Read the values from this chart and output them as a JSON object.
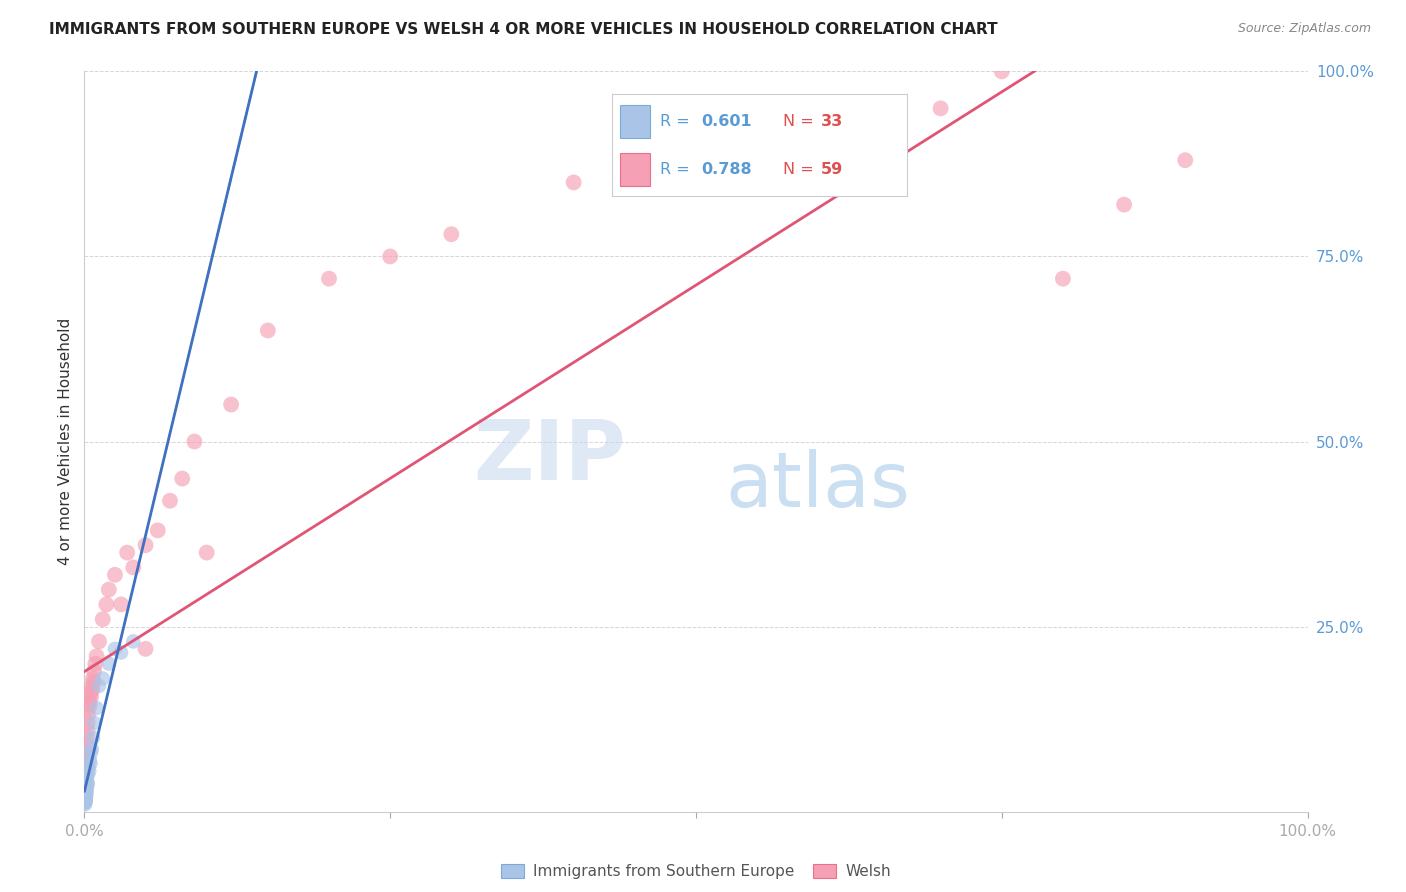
{
  "title": "IMMIGRANTS FROM SOUTHERN EUROPE VS WELSH 4 OR MORE VEHICLES IN HOUSEHOLD CORRELATION CHART",
  "source": "Source: ZipAtlas.com",
  "ylabel": "4 or more Vehicles in Household",
  "blue_label": "Immigrants from Southern Europe",
  "pink_label": "Welsh",
  "blue_R": "0.601",
  "blue_N": "33",
  "pink_R": "0.788",
  "pink_N": "59",
  "blue_color": "#aac4e8",
  "pink_color": "#f5a0b5",
  "blue_line_color": "#4070c0",
  "pink_line_color": "#e05575",
  "background_color": "#ffffff",
  "grid_color": "#cccccc",
  "title_color": "#222222",
  "axis_label_color": "#333333",
  "right_tick_color": "#5b9bd5",
  "watermark_zip_color": "#c5d8f0",
  "watermark_atlas_color": "#8bb8e0",
  "blue_x": [
    0.05,
    0.06,
    0.07,
    0.08,
    0.09,
    0.1,
    0.11,
    0.12,
    0.13,
    0.14,
    0.15,
    0.16,
    0.18,
    0.2,
    0.22,
    0.25,
    0.28,
    0.3,
    0.35,
    0.4,
    0.45,
    0.5,
    0.55,
    0.6,
    0.7,
    0.8,
    1.0,
    1.2,
    1.5,
    2.0,
    2.5,
    3.0,
    4.0
  ],
  "blue_y": [
    1.0,
    1.2,
    1.5,
    1.8,
    1.3,
    2.0,
    1.7,
    2.2,
    2.5,
    2.0,
    2.8,
    3.0,
    2.5,
    3.2,
    3.5,
    4.0,
    3.8,
    5.0,
    6.0,
    5.5,
    7.0,
    6.5,
    8.0,
    8.5,
    10.0,
    12.0,
    14.0,
    17.0,
    18.0,
    20.0,
    22.0,
    21.5,
    23.0
  ],
  "pink_x": [
    0.04,
    0.05,
    0.06,
    0.07,
    0.08,
    0.09,
    0.1,
    0.11,
    0.12,
    0.13,
    0.14,
    0.15,
    0.16,
    0.18,
    0.2,
    0.22,
    0.25,
    0.28,
    0.3,
    0.35,
    0.4,
    0.45,
    0.5,
    0.55,
    0.6,
    0.65,
    0.7,
    0.75,
    0.8,
    0.9,
    1.0,
    1.2,
    1.5,
    1.8,
    2.0,
    2.5,
    3.0,
    3.5,
    4.0,
    5.0,
    5.0,
    6.0,
    7.0,
    8.0,
    9.0,
    10.0,
    12.0,
    15.0,
    20.0,
    25.0,
    30.0,
    40.0,
    50.0,
    60.0,
    70.0,
    75.0,
    80.0,
    85.0,
    90.0
  ],
  "pink_y": [
    1.5,
    2.0,
    2.5,
    3.0,
    3.5,
    4.0,
    4.5,
    5.0,
    5.5,
    6.0,
    6.5,
    7.0,
    7.5,
    8.0,
    9.0,
    10.0,
    11.0,
    12.0,
    13.0,
    14.0,
    15.0,
    14.5,
    16.0,
    15.5,
    17.0,
    16.5,
    18.0,
    17.5,
    19.0,
    20.0,
    21.0,
    23.0,
    26.0,
    28.0,
    30.0,
    32.0,
    28.0,
    35.0,
    33.0,
    36.0,
    22.0,
    38.0,
    42.0,
    45.0,
    50.0,
    35.0,
    55.0,
    65.0,
    72.0,
    75.0,
    78.0,
    85.0,
    90.0,
    95.0,
    95.0,
    100.0,
    72.0,
    82.0,
    88.0
  ],
  "xlim": [
    0,
    100
  ],
  "ylim": [
    0,
    100
  ],
  "xticks": [
    0,
    25,
    50,
    75,
    100
  ],
  "xticklabels": [
    "0.0%",
    "",
    "",
    "",
    "100.0%"
  ],
  "yticks_right": [
    25,
    50,
    75,
    100
  ],
  "yticklabels_right": [
    "25.0%",
    "50.0%",
    "75.0%",
    "100.0%"
  ]
}
